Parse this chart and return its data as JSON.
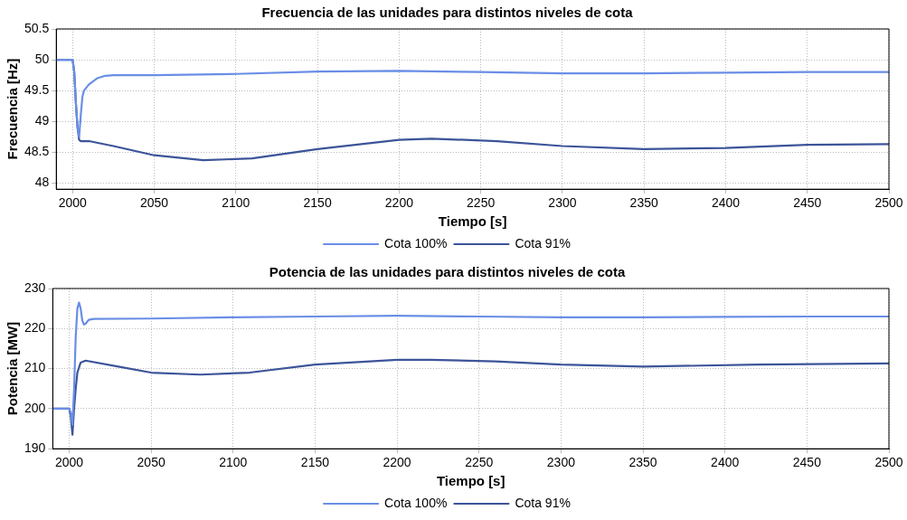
{
  "chart_data": [
    {
      "type": "line",
      "title": "Frecuencia de las unidades para distintos niveles de cota",
      "xlabel": "Tiempo [s]",
      "ylabel": "Frecuencia [Hz]",
      "xlim": [
        1990,
        2500
      ],
      "xticks": [
        2000,
        2050,
        2100,
        2150,
        2200,
        2250,
        2300,
        2350,
        2400,
        2450,
        2500
      ],
      "ylim": [
        47.9,
        50.5
      ],
      "yticks": [
        48,
        48.5,
        49,
        49.5,
        50,
        50.5
      ],
      "grid": true,
      "legend": "bottom",
      "marker": "none",
      "line_style": "solid",
      "series": [
        {
          "name": "Cota 100%",
          "color": "#6a8ee6",
          "x": [
            1990,
            2000,
            2001,
            2002,
            2003,
            2004,
            2005,
            2006,
            2007,
            2010,
            2015,
            2020,
            2025,
            2050,
            2100,
            2150,
            2200,
            2250,
            2300,
            2350,
            2400,
            2450,
            2500
          ],
          "values": [
            50,
            50,
            49.8,
            49.3,
            48.9,
            48.75,
            49.1,
            49.4,
            49.5,
            49.6,
            49.7,
            49.74,
            49.75,
            49.75,
            49.77,
            49.81,
            49.82,
            49.8,
            49.78,
            49.78,
            49.79,
            49.8,
            49.8
          ]
        },
        {
          "name": "Cota 91%",
          "color": "#3c5499",
          "x": [
            1990,
            2000,
            2001,
            2002,
            2003,
            2004,
            2005,
            2010,
            2025,
            2050,
            2080,
            2110,
            2150,
            2200,
            2220,
            2260,
            2300,
            2350,
            2400,
            2450,
            2500
          ],
          "values": [
            50,
            50,
            49.8,
            49.3,
            48.9,
            48.7,
            48.68,
            48.68,
            48.6,
            48.45,
            48.37,
            48.4,
            48.55,
            48.7,
            48.72,
            48.68,
            48.6,
            48.55,
            48.57,
            48.62,
            48.63
          ]
        }
      ]
    },
    {
      "type": "line",
      "title": "Potencia de las unidades para distintos niveles de cota",
      "xlabel": "Tiempo [s]",
      "ylabel": "Potencia [MW]",
      "xlim": [
        1990,
        2500
      ],
      "xticks": [
        2000,
        2050,
        2100,
        2150,
        2200,
        2250,
        2300,
        2350,
        2400,
        2450,
        2500
      ],
      "ylim": [
        190,
        230
      ],
      "yticks": [
        190,
        200,
        210,
        220,
        230
      ],
      "grid": true,
      "legend": "bottom",
      "marker": "none",
      "line_style": "solid",
      "series": [
        {
          "name": "Cota 100%",
          "color": "#6a8ee6",
          "x": [
            1990,
            2000,
            2001,
            2002,
            2003,
            2004,
            2005,
            2006,
            2007,
            2008,
            2009,
            2010,
            2012,
            2015,
            2050,
            2100,
            2150,
            2200,
            2250,
            2300,
            2350,
            2400,
            2450,
            2500
          ],
          "values": [
            200,
            200,
            199,
            196,
            205,
            218,
            225,
            226.5,
            225,
            222,
            221,
            221.2,
            222.2,
            222.4,
            222.5,
            222.8,
            223,
            223.2,
            223,
            222.8,
            222.8,
            222.9,
            223,
            223
          ]
        },
        {
          "name": "Cota 91%",
          "color": "#3c5499",
          "x": [
            1990,
            2000,
            2001,
            2002,
            2003,
            2004,
            2005,
            2007,
            2010,
            2030,
            2050,
            2080,
            2110,
            2150,
            2200,
            2220,
            2260,
            2300,
            2350,
            2420,
            2500
          ],
          "values": [
            200,
            200,
            198,
            193.5,
            200,
            205,
            209,
            211.5,
            212,
            210.5,
            209,
            208.5,
            209,
            211,
            212.2,
            212.2,
            211.8,
            211,
            210.5,
            211,
            211.3
          ]
        }
      ]
    }
  ]
}
